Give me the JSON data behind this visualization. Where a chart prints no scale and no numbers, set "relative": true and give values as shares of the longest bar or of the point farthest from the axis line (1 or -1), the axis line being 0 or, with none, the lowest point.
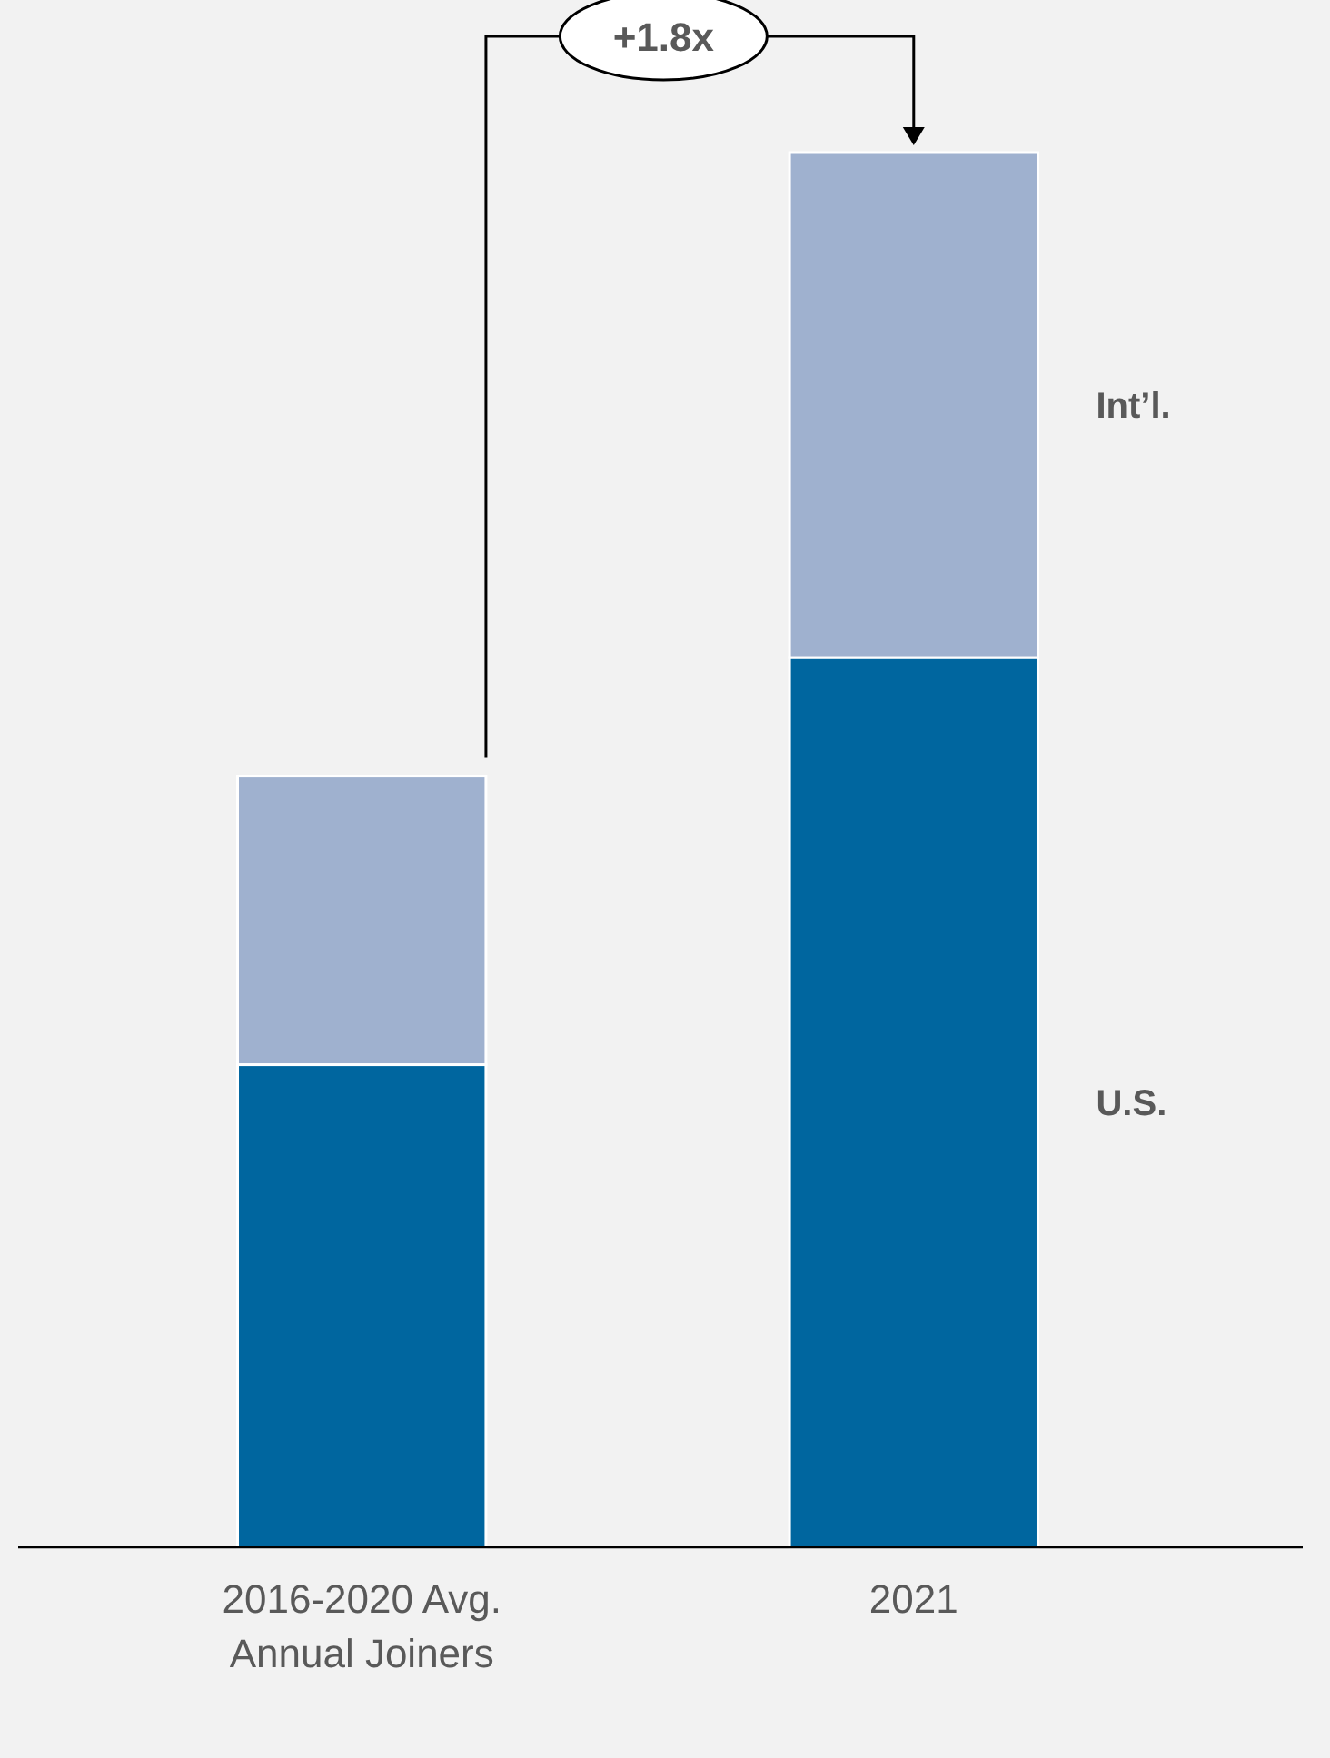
{
  "chart_data": {
    "type": "bar",
    "stacked": true,
    "relative": true,
    "categories": [
      "2016-2020 Avg. Annual Joiners",
      "2021"
    ],
    "series": [
      {
        "name": "U.S.",
        "color": "#00669f",
        "values": [
          0.346,
          0.638
        ]
      },
      {
        "name": "Int’l.",
        "color": "#9fb1cf",
        "values": [
          0.207,
          0.362
        ]
      }
    ],
    "annotations": [
      "+1.8x"
    ],
    "legend": false
  }
}
